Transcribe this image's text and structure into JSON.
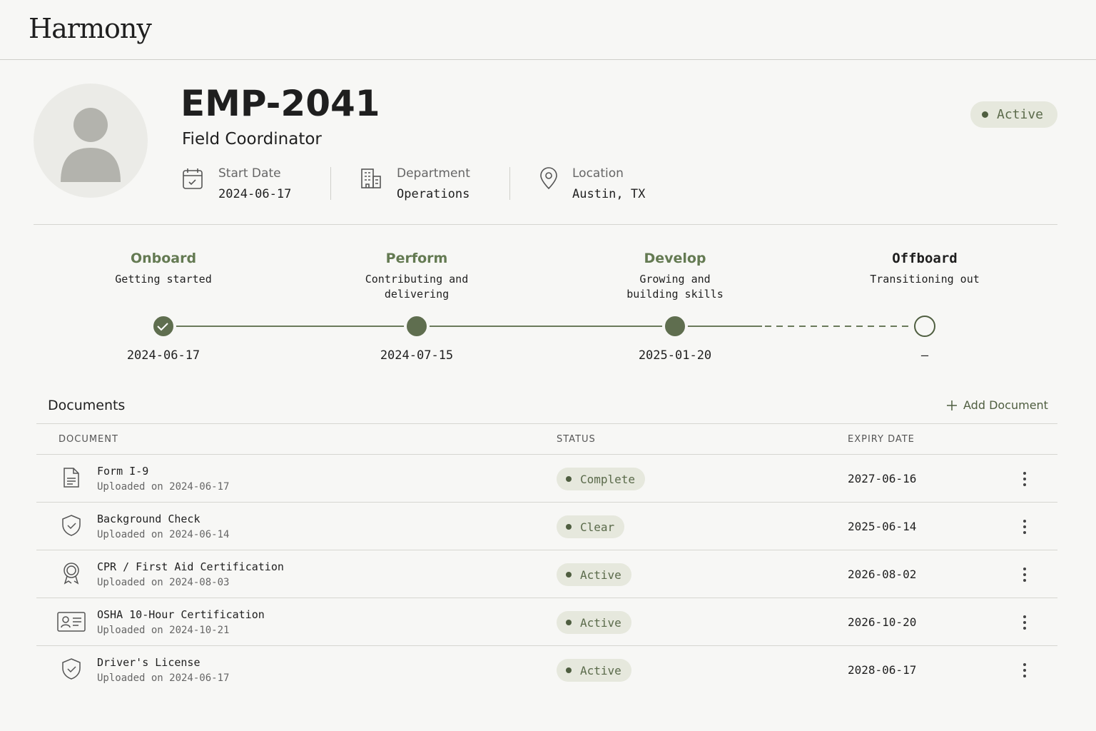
{
  "header": {
    "brand": "Harmony"
  },
  "profile": {
    "id": "EMP-2041",
    "role": "Field Coordinator",
    "status": "Active",
    "facts": [
      {
        "label": "Start Date",
        "value": "2024-06-17"
      },
      {
        "label": "Department",
        "value": "Operations"
      },
      {
        "label": "Location",
        "value": "Austin, TX"
      }
    ]
  },
  "timeline": {
    "stages": [
      {
        "name": "Onboard",
        "description": "Getting started",
        "date": "2024-06-17"
      },
      {
        "name": "Perform",
        "description": "Contributing and delivering",
        "date": "2024-07-15"
      },
      {
        "name": "Develop",
        "description": "Growing and building skills",
        "date": "2025-01-20"
      },
      {
        "name": "Offboard",
        "description": "Transitioning out",
        "date": "—"
      }
    ]
  },
  "documents": {
    "title": "Documents",
    "action": "Add Document",
    "columns": [
      "DOCUMENT",
      "STATUS",
      "EXPIRY DATE"
    ],
    "rows": [
      {
        "name": "Form I-9",
        "uploaded": "Uploaded on 2024-06-17",
        "status": "Complete",
        "expiry": "2027-06-16"
      },
      {
        "name": "Background Check",
        "uploaded": "Uploaded on 2024-06-14",
        "status": "Clear",
        "expiry": "2025-06-14"
      },
      {
        "name": "CPR / First Aid Certification",
        "uploaded": "Uploaded on 2024-08-03",
        "status": "Active",
        "expiry": "2026-08-02"
      },
      {
        "name": "OSHA 10-Hour Certification",
        "uploaded": "Uploaded on 2024-10-21",
        "status": "Active",
        "expiry": "2026-10-20"
      },
      {
        "name": "Driver's License",
        "uploaded": "Uploaded on 2024-06-17",
        "status": "Active",
        "expiry": "2028-06-17"
      }
    ]
  }
}
